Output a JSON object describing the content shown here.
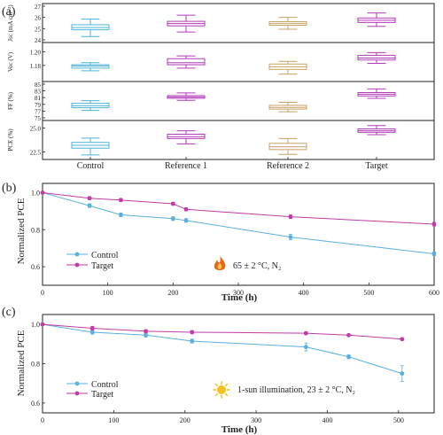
{
  "colors": {
    "Control": "#4db3d9",
    "Reference 1": "#b03ab8",
    "Reference 2": "#c8a064",
    "Target": "#b03ab8",
    "line_control": "#5aafe0",
    "line_target": "#c23aa6",
    "flame": "#e8681a",
    "sun": "#f3c21b"
  },
  "icons": {
    "panel_b": "flame-icon",
    "panel_c": "sun-icon"
  },
  "chart_data": [
    {
      "type": "box",
      "panel_label": "(a)",
      "categories": [
        "Control",
        "Reference 1",
        "Reference 2",
        "Target"
      ],
      "subplots": [
        {
          "ylabel": "Jsc (mA cm⁻²)",
          "ylim": [
            24,
            27
          ],
          "yticks": [
            "24",
            "25",
            "26",
            "27"
          ],
          "boxes": [
            {
              "min": 24.3,
              "q1": 24.9,
              "median": 25.1,
              "q3": 25.35,
              "max": 25.85
            },
            {
              "min": 24.7,
              "q1": 25.25,
              "median": 25.45,
              "q3": 25.65,
              "max": 26.2
            },
            {
              "min": 24.95,
              "q1": 25.3,
              "median": 25.45,
              "q3": 25.62,
              "max": 26.0
            },
            {
              "min": 25.2,
              "q1": 25.55,
              "median": 25.75,
              "q3": 25.95,
              "max": 26.4
            }
          ]
        },
        {
          "ylabel": "Voc (V)",
          "ylim": [
            1.16,
            1.21
          ],
          "yticks": [
            "1.18",
            "1.20"
          ],
          "boxes": [
            {
              "min": 1.172,
              "q1": 1.176,
              "median": 1.179,
              "q3": 1.181,
              "max": 1.184
            },
            {
              "min": 1.176,
              "q1": 1.181,
              "median": 1.184,
              "q3": 1.19,
              "max": 1.194
            },
            {
              "min": 1.167,
              "q1": 1.174,
              "median": 1.178,
              "q3": 1.182,
              "max": 1.186
            },
            {
              "min": 1.183,
              "q1": 1.188,
              "median": 1.191,
              "q3": 1.195,
              "max": 1.199
            }
          ]
        },
        {
          "ylabel": "FF (%)",
          "ylim": [
            75,
            85
          ],
          "yticks": [
            "75",
            "77",
            "79",
            "81",
            "83",
            "85"
          ],
          "boxes": [
            {
              "min": 77.2,
              "q1": 78.0,
              "median": 78.6,
              "q3": 79.3,
              "max": 80.1
            },
            {
              "min": 80.2,
              "q1": 80.8,
              "median": 81.2,
              "q3": 81.6,
              "max": 82.4
            },
            {
              "min": 76.8,
              "q1": 77.6,
              "median": 78.1,
              "q3": 78.7,
              "max": 79.6
            },
            {
              "min": 80.8,
              "q1": 81.5,
              "median": 82.0,
              "q3": 82.5,
              "max": 83.6
            }
          ]
        },
        {
          "ylabel": "PCE (%)",
          "ylim": [
            22.0,
            25.5
          ],
          "yticks": [
            "22.5",
            "25.0"
          ],
          "boxes": [
            {
              "min": 22.2,
              "q1": 22.9,
              "median": 23.2,
              "q3": 23.5,
              "max": 23.95
            },
            {
              "min": 23.35,
              "q1": 23.9,
              "median": 24.1,
              "q3": 24.35,
              "max": 24.7
            },
            {
              "min": 22.25,
              "q1": 22.75,
              "median": 23.05,
              "q3": 23.4,
              "max": 23.9
            },
            {
              "min": 24.3,
              "q1": 24.55,
              "median": 24.7,
              "q3": 24.9,
              "max": 25.25
            }
          ]
        }
      ]
    },
    {
      "type": "line",
      "panel_label": "(b)",
      "xlabel": "Time (h)",
      "ylabel": "Normalized PCE",
      "xlim": [
        0,
        600
      ],
      "ylim": [
        0.5,
        1.05
      ],
      "xticks": [
        0,
        100,
        200,
        300,
        400,
        500,
        600
      ],
      "yticks": [
        0.6,
        0.8,
        1.0
      ],
      "annotation": "65 ± 2 °C, N₂",
      "series": [
        {
          "name": "Control",
          "x": [
            0,
            72,
            120,
            200,
            220,
            380,
            600
          ],
          "y": [
            1.0,
            0.93,
            0.88,
            0.86,
            0.85,
            0.76,
            0.67
          ],
          "err": [
            0,
            0.01,
            0.01,
            0.01,
            0.01,
            0.015,
            0.01
          ]
        },
        {
          "name": "Target",
          "x": [
            0,
            72,
            120,
            200,
            220,
            380,
            600
          ],
          "y": [
            1.0,
            0.97,
            0.96,
            0.94,
            0.91,
            0.87,
            0.83
          ],
          "err": [
            0,
            0.008,
            0.008,
            0.008,
            0.008,
            0.01,
            0.01
          ]
        }
      ]
    },
    {
      "type": "line",
      "panel_label": "(c)",
      "xlabel": "Time (h)",
      "ylabel": "Normalized PCE",
      "xlim": [
        0,
        550
      ],
      "ylim": [
        0.55,
        1.05
      ],
      "xticks": [
        0,
        100,
        200,
        300,
        400,
        500
      ],
      "yticks": [
        0.6,
        0.8,
        1.0
      ],
      "annotation": "1-sun illumination, 23 ± 2 °C, N₂",
      "series": [
        {
          "name": "Control",
          "x": [
            0,
            70,
            145,
            210,
            370,
            430,
            505
          ],
          "y": [
            1.0,
            0.96,
            0.945,
            0.915,
            0.885,
            0.835,
            0.75
          ],
          "err": [
            0,
            0.01,
            0.01,
            0.01,
            0.02,
            0.01,
            0.04
          ]
        },
        {
          "name": "Target",
          "x": [
            0,
            70,
            145,
            210,
            370,
            430,
            505
          ],
          "y": [
            1.0,
            0.98,
            0.965,
            0.96,
            0.955,
            0.945,
            0.925
          ],
          "err": [
            0,
            0.01,
            0.008,
            0.008,
            0.008,
            0.006,
            0.006
          ]
        }
      ]
    }
  ]
}
